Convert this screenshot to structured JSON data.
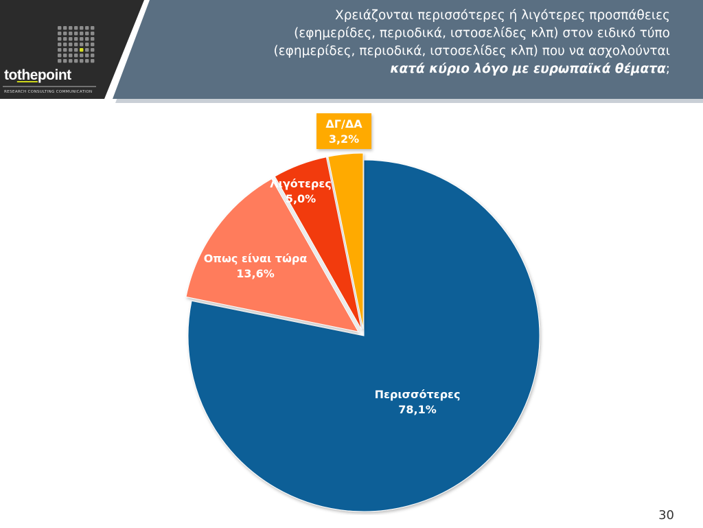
{
  "brand": {
    "logo_parts": [
      "to",
      "the",
      "point"
    ],
    "tagline": "RESEARCH CONSULTING COMMUNICATION",
    "accent_color": "#d7df23"
  },
  "header": {
    "title_lines": [
      "Χρειάζονται περισσότερες ή λιγότερες προσπάθειες",
      "(εφημερίδες, περιοδικά, ιστοσελίδες κλπ) στον ειδικό τύπο",
      "(εφημερίδες, περιοδικά, ιστοσελίδες κλπ) που να ασχολούνται"
    ],
    "title_emphasis": "κατά κύριο λόγο με ευρωπαϊκά θέματα",
    "title_end": ";",
    "panel_color": "#5a6f82",
    "logo_panel_color": "#2b2b2b"
  },
  "chart_data": {
    "type": "pie",
    "slices": [
      {
        "label": "Περισσότερες",
        "value": 78.1,
        "display": "78,1%",
        "color": "#0d5f97",
        "exploded": false
      },
      {
        "label": "Οπως είναι τώρα",
        "value": 13.6,
        "display": "13,6%",
        "color": "#ff7b5c",
        "exploded": true
      },
      {
        "label": "Λιγότερες",
        "value": 5.0,
        "display": "5,0%",
        "color": "#f23a0c",
        "exploded": true
      },
      {
        "label": "ΔΓ/ΔΑ",
        "value": 3.2,
        "display": "3,2%",
        "color": "#ffaa00",
        "exploded": true
      }
    ],
    "start": "12 o'clock",
    "direction": "clockwise"
  },
  "footer": {
    "page_number": "30"
  }
}
